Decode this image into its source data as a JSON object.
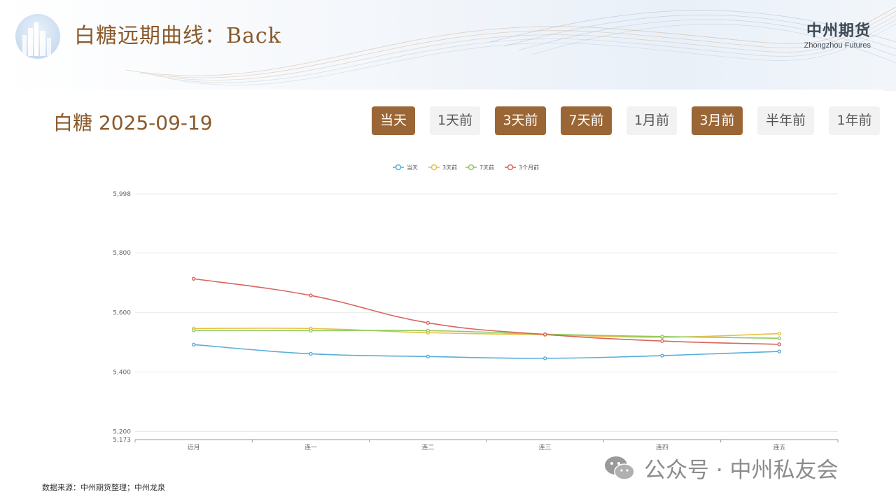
{
  "header": {
    "title": "白糖远期曲线：Back",
    "brand_cn": "中州期货",
    "brand_en": "Zhongzhou Futures"
  },
  "chart_heading": "白糖 2025-09-19",
  "period_buttons": [
    {
      "label": "当天",
      "active": true
    },
    {
      "label": "1天前",
      "active": false
    },
    {
      "label": "3天前",
      "active": true
    },
    {
      "label": "7天前",
      "active": true
    },
    {
      "label": "1月前",
      "active": false
    },
    {
      "label": "3月前",
      "active": true
    },
    {
      "label": "半年前",
      "active": false
    },
    {
      "label": "1年前",
      "active": false
    }
  ],
  "chart_data": {
    "type": "line",
    "categories": [
      "近月",
      "连一",
      "连二",
      "连三",
      "连四",
      "连五"
    ],
    "series": [
      {
        "name": "当天",
        "color": "#5aaed8",
        "values": [
          5492,
          5461,
          5452,
          5446,
          5455,
          5469
        ]
      },
      {
        "name": "3天前",
        "color": "#e9c046",
        "values": [
          5546,
          5546,
          5532,
          5525,
          5517,
          5529
        ]
      },
      {
        "name": "7天前",
        "color": "#8fcc5c",
        "values": [
          5540,
          5539,
          5539,
          5527,
          5519,
          5513
        ]
      },
      {
        "name": "3个月前",
        "color": "#d9655f",
        "values": [
          5713,
          5657,
          5565,
          5526,
          5504,
          5493
        ]
      }
    ],
    "yticks": [
      "5,998",
      "5,800",
      "5,600",
      "5,400",
      "5,200",
      "5,173"
    ],
    "ylim": [
      5173,
      5998
    ],
    "grid": true,
    "legend": "top-center"
  },
  "source_text": "数据来源：中州期货整理；中州龙泉",
  "watermark_text": "公众号 · 中州私友会"
}
